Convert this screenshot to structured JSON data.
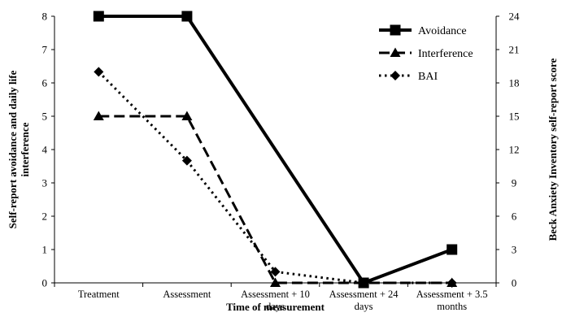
{
  "chart_data": {
    "type": "line",
    "categories": [
      [
        "Treatment"
      ],
      [
        "Assessment"
      ],
      [
        "Assessment + 10",
        "days"
      ],
      [
        "Assessment + 24",
        "days"
      ],
      [
        "Assessment + 3.5",
        "months"
      ]
    ],
    "xlabel": "Time of measurement",
    "ylabel_left": [
      "Self-report avoidance and daily life",
      "interference"
    ],
    "ylabel_right": "Beck Anxiety Inventory self-report score",
    "ylim_left": [
      0,
      8
    ],
    "yticks_left": [
      "0",
      "1",
      "2",
      "3",
      "4",
      "5",
      "6",
      "7",
      "8"
    ],
    "ylim_right": [
      0,
      24
    ],
    "yticks_right": [
      "0",
      "3",
      "6",
      "9",
      "12",
      "15",
      "18",
      "21",
      "24"
    ],
    "grid": false,
    "legend_position": "top-right",
    "series": [
      {
        "name": "Avoidance",
        "axis": "left",
        "style": "solid",
        "marker": "square",
        "values": [
          8,
          8,
          null,
          0,
          1
        ]
      },
      {
        "name": "Interference",
        "axis": "left",
        "style": "dashed",
        "marker": "triangle",
        "values": [
          5,
          5,
          0,
          0,
          0
        ]
      },
      {
        "name": "BAI",
        "axis": "right",
        "style": "dotted",
        "marker": "diamond",
        "values": [
          19,
          11,
          1,
          0,
          0
        ]
      }
    ]
  }
}
